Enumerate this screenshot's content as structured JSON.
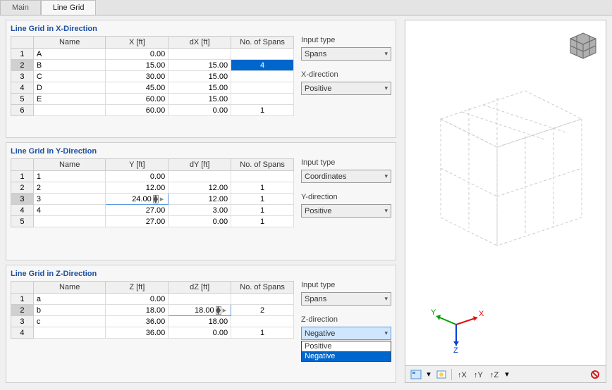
{
  "tabs": {
    "main": "Main",
    "line_grid": "Line Grid",
    "active": "line_grid"
  },
  "sections": {
    "x": {
      "title": "Line Grid in X-Direction",
      "cols": [
        "",
        "Name",
        "X [ft]",
        "dX [ft]",
        "No. of Spans"
      ],
      "rows": [
        {
          "n": "1",
          "name": "A",
          "v": "0.00",
          "d": "",
          "s": ""
        },
        {
          "n": "2",
          "name": "B",
          "v": "15.00",
          "d": "15.00",
          "s": "4"
        },
        {
          "n": "3",
          "name": "C",
          "v": "30.00",
          "d": "15.00",
          "s": ""
        },
        {
          "n": "4",
          "name": "D",
          "v": "45.00",
          "d": "15.00",
          "s": ""
        },
        {
          "n": "5",
          "name": "E",
          "v": "60.00",
          "d": "15.00",
          "s": ""
        },
        {
          "n": "6",
          "name": "",
          "v": "60.00",
          "d": "0.00",
          "s": "1"
        }
      ],
      "selected_row": 1,
      "input_label": "Input type",
      "input_value": "Spans",
      "dir_label": "X-direction",
      "dir_value": "Positive"
    },
    "y": {
      "title": "Line Grid in Y-Direction",
      "cols": [
        "",
        "Name",
        "Y [ft]",
        "dY [ft]",
        "No. of Spans"
      ],
      "rows": [
        {
          "n": "1",
          "name": "1",
          "v": "0.00",
          "d": "",
          "s": ""
        },
        {
          "n": "2",
          "name": "2",
          "v": "12.00",
          "d": "12.00",
          "s": "1"
        },
        {
          "n": "3",
          "name": "3",
          "v": "24.00",
          "d": "12.00",
          "s": "1"
        },
        {
          "n": "4",
          "name": "4",
          "v": "27.00",
          "d": "3.00",
          "s": "1"
        },
        {
          "n": "5",
          "name": "",
          "v": "27.00",
          "d": "0.00",
          "s": "1"
        }
      ],
      "editing_row": 2,
      "editing_val": "24.00",
      "input_label": "Input type",
      "input_value": "Coordinates",
      "dir_label": "Y-direction",
      "dir_value": "Positive"
    },
    "z": {
      "title": "Line Grid in Z-Direction",
      "cols": [
        "",
        "Name",
        "Z [ft]",
        "dZ [ft]",
        "No. of Spans"
      ],
      "rows": [
        {
          "n": "1",
          "name": "a",
          "v": "0.00",
          "d": "",
          "s": ""
        },
        {
          "n": "2",
          "name": "b",
          "v": "18.00",
          "d": "18.00",
          "s": "2"
        },
        {
          "n": "3",
          "name": "c",
          "v": "36.00",
          "d": "18.00",
          "s": ""
        },
        {
          "n": "4",
          "name": "",
          "v": "36.00",
          "d": "0.00",
          "s": "1"
        }
      ],
      "editing_row": 1,
      "editing_val": "18.00",
      "input_label": "Input type",
      "input_value": "Spans",
      "dir_label": "Z-direction",
      "dir_value": "Negative",
      "dir_options": [
        "Positive",
        "Negative"
      ],
      "dir_open": true,
      "dir_highlight": 1
    }
  },
  "axes": {
    "x": "X",
    "y": "Y",
    "z": "Z",
    "colors": {
      "x": "#e01010",
      "y": "#00a000",
      "z": "#0040d0"
    }
  },
  "colors": {
    "accent": "#2050a0",
    "select_bg": "#0066cc",
    "select_fg": "#ffffff"
  }
}
